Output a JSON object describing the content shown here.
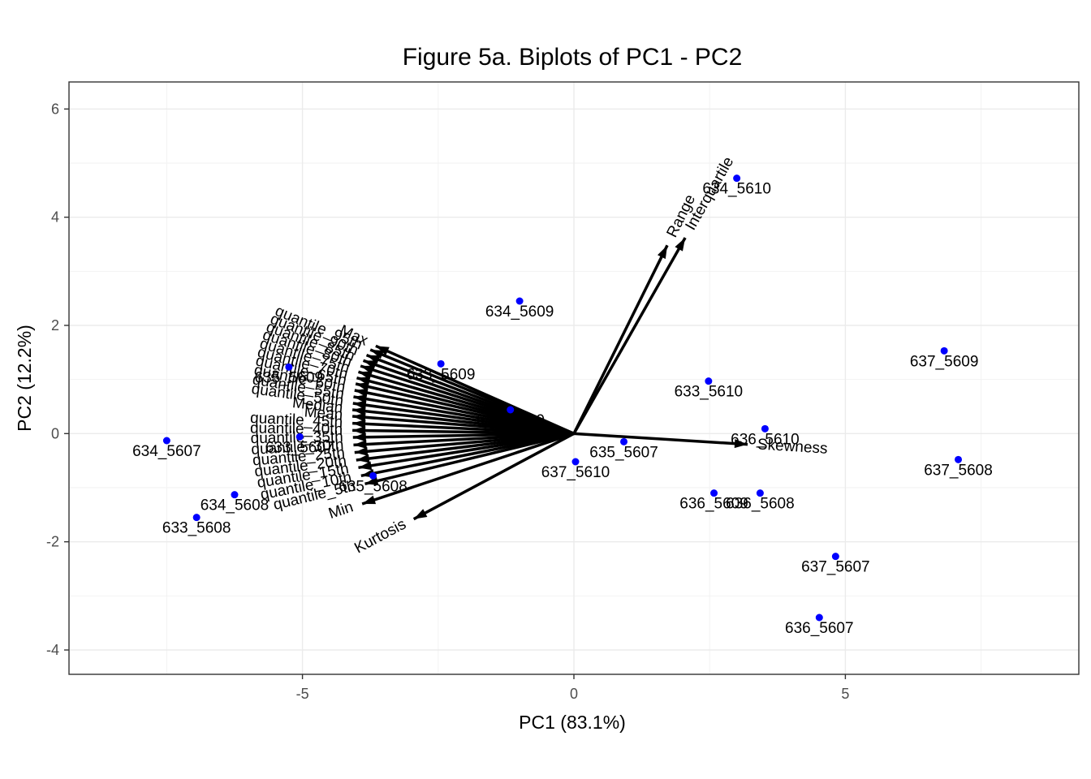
{
  "chart_data": {
    "type": "scatter",
    "title": "Figure 5a. Biplots of PC1 - PC2",
    "xlabel": "PC1 (83.1%)",
    "ylabel": "PC2 (12.2%)",
    "xlim": [
      -9.3,
      9.3
    ],
    "ylim": [
      -4.45,
      6.5
    ],
    "x_ticks": [
      -5,
      0,
      5
    ],
    "y_ticks": [
      -4,
      -2,
      0,
      2,
      4,
      6
    ],
    "grid": true,
    "point_color": "#0000ff",
    "arrow_color": "#000000",
    "points": [
      {
        "label": "634_5610",
        "x": 3.0,
        "y": 4.72
      },
      {
        "label": "634_5609",
        "x": -1.0,
        "y": 2.45
      },
      {
        "label": "637_5609",
        "x": 6.82,
        "y": 1.53
      },
      {
        "label": "633_5609",
        "x": -2.45,
        "y": 1.29
      },
      {
        "label": "635_5609",
        "x": -5.25,
        "y": 1.23
      },
      {
        "label": "633_5610",
        "x": 2.48,
        "y": 0.97
      },
      {
        "label": "635_5610",
        "x": -1.17,
        "y": 0.44
      },
      {
        "label": "636_5610",
        "x": 3.52,
        "y": 0.09
      },
      {
        "label": "633_5607",
        "x": -5.05,
        "y": -0.06
      },
      {
        "label": "634_5607",
        "x": -7.5,
        "y": -0.13
      },
      {
        "label": "635_5607",
        "x": 0.92,
        "y": -0.15
      },
      {
        "label": "637_5608",
        "x": 7.08,
        "y": -0.48
      },
      {
        "label": "637_5610",
        "x": 0.03,
        "y": -0.52
      },
      {
        "label": "635_5608",
        "x": -3.7,
        "y": -0.78
      },
      {
        "label": "636_5609",
        "x": 2.58,
        "y": -1.1
      },
      {
        "label": "636_5608",
        "x": 3.43,
        "y": -1.1
      },
      {
        "label": "634_5608",
        "x": -6.25,
        "y": -1.13
      },
      {
        "label": "633_5608",
        "x": -6.95,
        "y": -1.55
      },
      {
        "label": "637_5607",
        "x": 4.82,
        "y": -2.27
      },
      {
        "label": "636_5607",
        "x": 4.52,
        "y": -3.4
      }
    ],
    "loadings": [
      {
        "name": "Max",
        "x": -3.65,
        "y": 1.62
      },
      {
        "name": "quantile_95th",
        "x": -3.75,
        "y": 1.55
      },
      {
        "name": "quantile_90th",
        "x": -3.82,
        "y": 1.45
      },
      {
        "name": "quantile_85th",
        "x": -3.88,
        "y": 1.35
      },
      {
        "name": "quantile_80th",
        "x": -3.93,
        "y": 1.25
      },
      {
        "name": "quantile_75th",
        "x": -3.97,
        "y": 1.14
      },
      {
        "name": "quantile_70th",
        "x": -4.0,
        "y": 1.03
      },
      {
        "name": "quantile_65th",
        "x": -4.02,
        "y": 0.92
      },
      {
        "name": "quantile_60th",
        "x": -4.04,
        "y": 0.8
      },
      {
        "name": "quantile_55th",
        "x": -4.06,
        "y": 0.68
      },
      {
        "name": "quantile_50th",
        "x": -4.07,
        "y": 0.56
      },
      {
        "name": "Median",
        "x": -4.08,
        "y": 0.44
      },
      {
        "name": "Mean",
        "x": -4.08,
        "y": 0.32
      },
      {
        "name": "quantile_45th",
        "x": -4.08,
        "y": 0.19
      },
      {
        "name": "quantile_40th",
        "x": -4.08,
        "y": 0.06
      },
      {
        "name": "quantile_35th",
        "x": -4.07,
        "y": -0.07
      },
      {
        "name": "quantile_30th",
        "x": -4.06,
        "y": -0.21
      },
      {
        "name": "quantile_25th",
        "x": -4.04,
        "y": -0.35
      },
      {
        "name": "quantile_20th",
        "x": -4.01,
        "y": -0.49
      },
      {
        "name": "quantile_15th",
        "x": -3.97,
        "y": -0.63
      },
      {
        "name": "quantile_10th",
        "x": -3.92,
        "y": -0.78
      },
      {
        "name": "quantile_5th",
        "x": -3.85,
        "y": -0.93
      },
      {
        "name": "Min",
        "x": -3.9,
        "y": -1.3
      },
      {
        "name": "Kurtosis",
        "x": -2.95,
        "y": -1.58
      },
      {
        "name": "Skewness",
        "x": 3.2,
        "y": -0.2
      },
      {
        "name": "Range",
        "x": 1.72,
        "y": 3.48
      },
      {
        "name": "Interquartile",
        "x": 2.05,
        "y": 3.62
      }
    ]
  }
}
